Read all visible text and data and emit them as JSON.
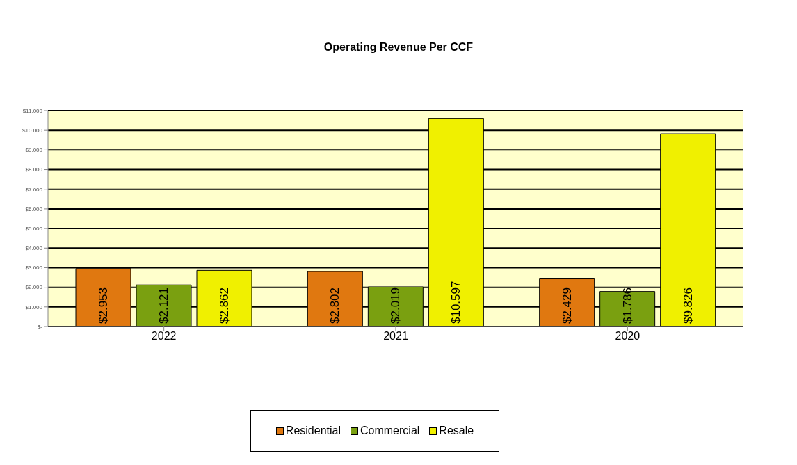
{
  "chart_data": {
    "type": "bar",
    "title": "Operating Revenue Per CCF",
    "categories": [
      "2022",
      "2021",
      "2020"
    ],
    "series": [
      {
        "name": "Residential",
        "color": "#e07810",
        "values": [
          2.953,
          2.802,
          2.429
        ],
        "value_labels": [
          "$2.953",
          "$2.802",
          "$2.429"
        ]
      },
      {
        "name": "Commercial",
        "color": "#7aa010",
        "values": [
          2.121,
          2.019,
          1.786
        ],
        "value_labels": [
          "$2.121",
          "$2.019",
          "$1.786"
        ]
      },
      {
        "name": "Resale",
        "color": "#f0f000",
        "values": [
          2.862,
          10.597,
          9.826
        ],
        "value_labels": [
          "$2.862",
          "$10.597",
          "$9.826"
        ]
      }
    ],
    "ylim": [
      0,
      11
    ],
    "yticks": [
      {
        "value": 0,
        "label": "$-"
      },
      {
        "value": 1,
        "label": "$1.000"
      },
      {
        "value": 2,
        "label": "$2.000"
      },
      {
        "value": 3,
        "label": "$3.000"
      },
      {
        "value": 4,
        "label": "$4.000"
      },
      {
        "value": 5,
        "label": "$5.000"
      },
      {
        "value": 6,
        "label": "$6.000"
      },
      {
        "value": 7,
        "label": "$7.000"
      },
      {
        "value": 8,
        "label": "$8.000"
      },
      {
        "value": 9,
        "label": "$9.000"
      },
      {
        "value": 10,
        "label": "$10.000"
      },
      {
        "value": 11,
        "label": "$11.000"
      }
    ],
    "grid": "y",
    "legend": "bottom"
  }
}
